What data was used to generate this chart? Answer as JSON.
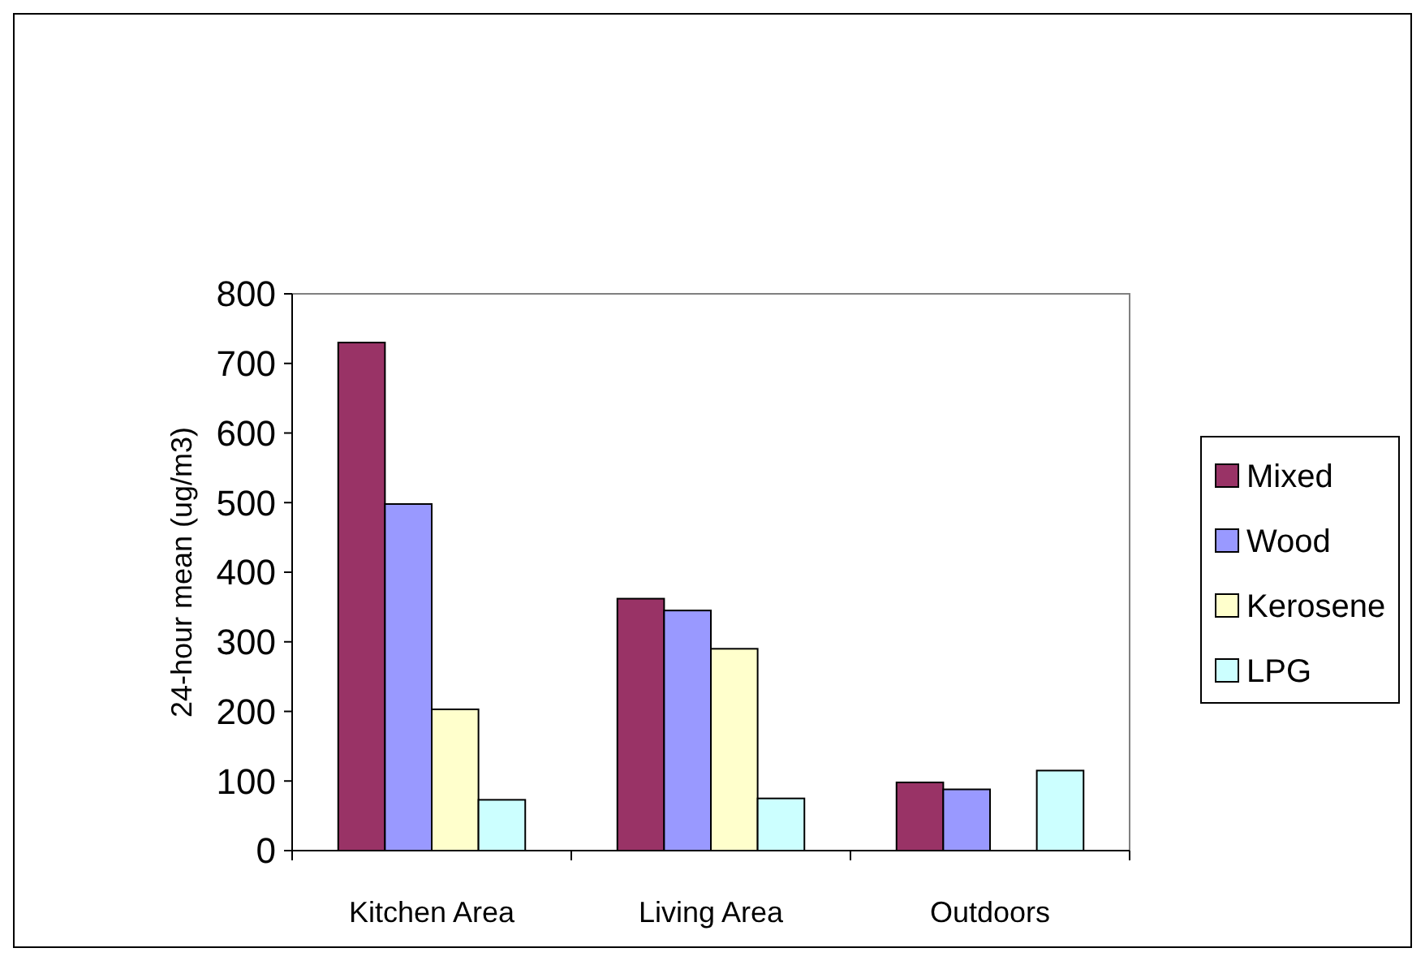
{
  "chart_data": {
    "type": "bar",
    "ylabel": "24-hour mean (ug/m3)",
    "categories": [
      "Kitchen Area",
      "Living Area",
      "Outdoors"
    ],
    "series": [
      {
        "name": "Mixed",
        "color": "#993366",
        "values": [
          730,
          362,
          98
        ]
      },
      {
        "name": "Wood",
        "color": "#9999ff",
        "values": [
          498,
          345,
          88
        ]
      },
      {
        "name": "Kerosene",
        "color": "#ffffcc",
        "values": [
          203,
          290,
          null
        ]
      },
      {
        "name": "LPG",
        "color": "#ccffff",
        "values": [
          73,
          75,
          115
        ]
      }
    ],
    "ylim": [
      0,
      800
    ],
    "yticks": [
      0,
      100,
      200,
      300,
      400,
      500,
      600,
      700,
      800
    ],
    "grid": false,
    "legend": "right"
  }
}
